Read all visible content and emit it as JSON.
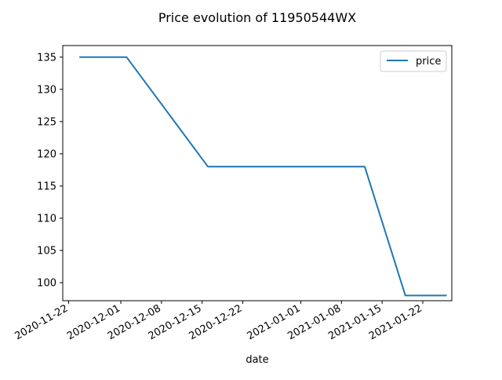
{
  "chart_data": {
    "type": "line",
    "title": "Price evolution of 11950544WX",
    "xlabel": "date",
    "ylabel": "",
    "x_type": "date",
    "xlim": [
      "2020-11-21",
      "2021-01-27"
    ],
    "ylim": [
      97.2,
      136.8
    ],
    "x_ticks": [
      "2020-11-22",
      "2020-12-01",
      "2020-12-08",
      "2020-12-15",
      "2020-12-22",
      "2021-01-01",
      "2021-01-08",
      "2021-01-15",
      "2021-01-22"
    ],
    "y_ticks": [
      100,
      105,
      110,
      115,
      120,
      125,
      130,
      135
    ],
    "grid": false,
    "legend": {
      "position": "top-right"
    },
    "series": [
      {
        "name": "price",
        "color": "#1f77b4",
        "x": [
          "2020-11-24",
          "2020-12-02",
          "2020-12-16",
          "2021-01-12",
          "2021-01-19",
          "2021-01-26"
        ],
        "y": [
          135,
          135,
          118,
          118,
          98,
          98
        ]
      }
    ]
  }
}
